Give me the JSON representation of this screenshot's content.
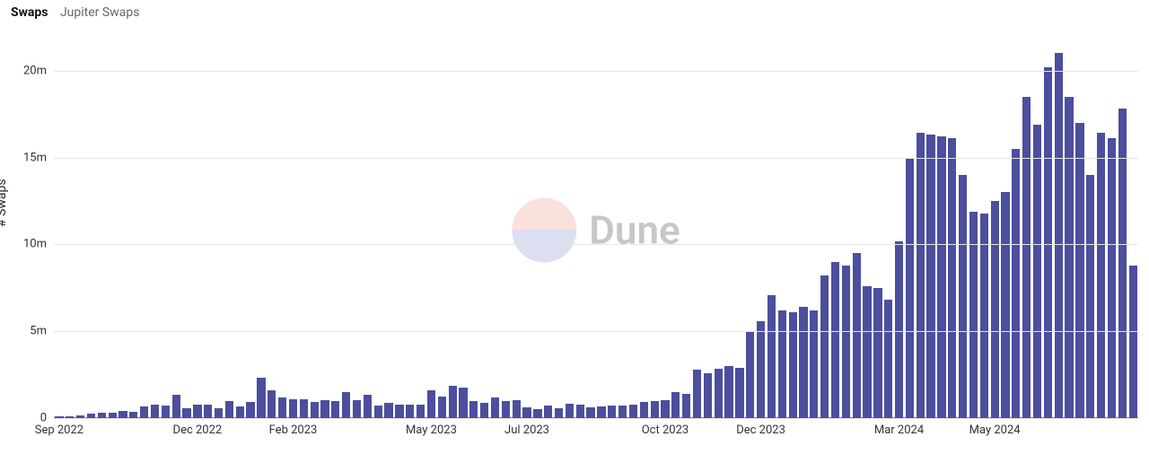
{
  "legend": {
    "main": "Swaps",
    "sub": "Jupiter Swaps"
  },
  "watermark": {
    "text": "Dune",
    "color_top": "#f7c7bf",
    "color_bottom": "#bfc3e7"
  },
  "chart": {
    "type": "bar",
    "yaxis_title": "# Swaps",
    "bar_color": "#4c4e9e",
    "bar_width_ratio": 0.78,
    "background_color": "#ffffff",
    "grid_color": "#e5e5e5",
    "axis_line_color": "#888888",
    "label_fontsize": 13,
    "title_fontsize": 14,
    "ylim": [
      0,
      22000000
    ],
    "yticks": [
      {
        "v": 0,
        "label": "0"
      },
      {
        "v": 5000000,
        "label": "5m"
      },
      {
        "v": 10000000,
        "label": "10m"
      },
      {
        "v": 15000000,
        "label": "15m"
      },
      {
        "v": 20000000,
        "label": "20m"
      }
    ],
    "xticks": [
      {
        "index": 0,
        "label": "Sep 2022"
      },
      {
        "index": 13,
        "label": "Dec 2022"
      },
      {
        "index": 22,
        "label": "Feb 2023"
      },
      {
        "index": 35,
        "label": "May 2023"
      },
      {
        "index": 44,
        "label": "Jul 2023"
      },
      {
        "index": 57,
        "label": "Oct 2023"
      },
      {
        "index": 66,
        "label": "Dec 2023"
      },
      {
        "index": 79,
        "label": "Mar 2024"
      },
      {
        "index": 88,
        "label": "May 2024"
      }
    ],
    "values": [
      80000,
      120000,
      180000,
      250000,
      300000,
      300000,
      400000,
      350000,
      650000,
      800000,
      700000,
      1350000,
      550000,
      800000,
      750000,
      550000,
      1000000,
      650000,
      950000,
      2350000,
      1600000,
      1200000,
      1100000,
      1100000,
      950000,
      1050000,
      1000000,
      1500000,
      1050000,
      1350000,
      700000,
      900000,
      750000,
      750000,
      800000,
      1600000,
      1250000,
      1850000,
      1750000,
      1000000,
      900000,
      1200000,
      1000000,
      1050000,
      600000,
      500000,
      700000,
      550000,
      850000,
      800000,
      600000,
      650000,
      700000,
      700000,
      750000,
      950000,
      1000000,
      1050000,
      1500000,
      1400000,
      2800000,
      2600000,
      2850000,
      3000000,
      2900000,
      5000000,
      5600000,
      7100000,
      6200000,
      6100000,
      6400000,
      6200000,
      8200000,
      9000000,
      8800000,
      9500000,
      7600000,
      7500000,
      6800000,
      10200000,
      14900000,
      16400000,
      16300000,
      16200000,
      16100000,
      14000000,
      11900000,
      11800000,
      12500000,
      13000000,
      15500000,
      18500000,
      16900000,
      20200000,
      21000000,
      18500000,
      17000000,
      14000000,
      16400000,
      16100000,
      17800000,
      8800000
    ]
  }
}
